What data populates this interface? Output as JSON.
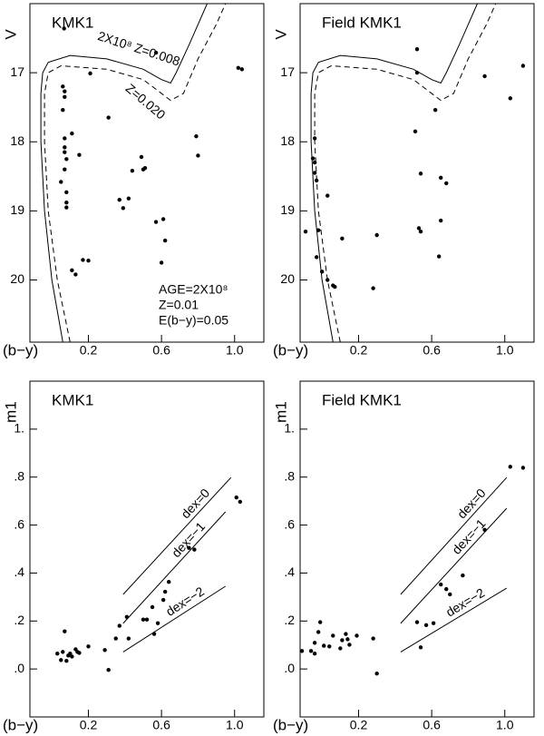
{
  "chart_data": [
    {
      "type": "scatter",
      "title": "KMK1",
      "x_label": "(b−y)",
      "y_label": "V",
      "color": "#000000",
      "xlim": [
        -0.12,
        1.16
      ],
      "ylim": [
        20.9,
        16.0
      ],
      "xticks": [
        0.2,
        0.6,
        {
          "value": 1,
          "label": "1.0"
        }
      ],
      "yticks": [
        17,
        18,
        19,
        20
      ],
      "x": [
        0.067,
        0.57,
        0.21,
        1.02,
        1.04,
        0.06,
        0.07,
        0.07,
        0.06,
        0.31,
        0.11,
        0.07,
        0.07,
        0.07,
        0.08,
        0.07,
        0.15,
        0.79,
        0.8,
        0.44,
        0.49,
        0.5,
        0.51,
        0.05,
        0.08,
        0.08,
        0.08,
        0.37,
        0.39,
        0.42,
        0.57,
        0.61,
        0.62,
        0.6,
        0.17,
        0.2,
        0.11,
        0.13
      ],
      "y": [
        16.36,
        16.71,
        17.01,
        16.93,
        16.95,
        17.2,
        17.27,
        17.35,
        17.54,
        17.65,
        17.88,
        17.95,
        18.08,
        18.15,
        18.25,
        18.4,
        18.19,
        17.92,
        18.2,
        18.42,
        18.22,
        18.4,
        18.38,
        18.58,
        18.73,
        18.88,
        18.95,
        18.84,
        18.96,
        18.82,
        19.16,
        19.12,
        19.43,
        19.75,
        19.71,
        19.72,
        19.86,
        19.92
      ],
      "lines": [
        {
          "dash": false,
          "x": [
            0.06,
            0.0,
            -0.04,
            -0.06,
            -0.06,
            -0.05,
            -0.02,
            0.1,
            0.3,
            0.5,
            0.6,
            0.65,
            0.68,
            0.75,
            0.85
          ],
          "y": [
            20.9,
            20.0,
            19.0,
            18.0,
            17.3,
            17.0,
            16.85,
            16.75,
            16.8,
            16.95,
            17.1,
            17.15,
            17.0,
            16.6,
            16.0
          ]
        },
        {
          "dash": true,
          "x": [
            0.1,
            0.03,
            -0.02,
            -0.04,
            -0.04,
            -0.02,
            0.05,
            0.3,
            0.5,
            0.65,
            0.72,
            0.8,
            0.9,
            0.95
          ],
          "y": [
            20.9,
            20.0,
            19.0,
            18.0,
            17.3,
            17.0,
            16.9,
            16.95,
            17.1,
            17.4,
            17.3,
            16.8,
            16.3,
            16.0
          ]
        }
      ],
      "annotations": [
        "2X10⁸ Z=0.008",
        "Z=0.020",
        "AGE=2X10⁸",
        "Z=0.01",
        "E(b−y)=0.05"
      ]
    },
    {
      "type": "scatter",
      "title": "Field KMK1",
      "x_label": "(b−y)",
      "y_label": "V",
      "color": "#000000",
      "xlim": [
        -0.12,
        1.16
      ],
      "ylim": [
        20.9,
        16.0
      ],
      "xticks": [
        0.2,
        0.6,
        {
          "value": 1,
          "label": "1.0"
        }
      ],
      "yticks": [
        17,
        18,
        19,
        20
      ],
      "x": [
        0.52,
        0.52,
        0.62,
        0.89,
        1.03,
        1.1,
        0.51,
        -0.04,
        -0.05,
        -0.04,
        -0.04,
        -0.03,
        -0.09,
        0.03,
        -0.02,
        0.11,
        0.3,
        0.54,
        0.65,
        0.68,
        0.53,
        0.54,
        0.65,
        0.64,
        -0.03,
        0.0,
        0.03,
        0.06,
        0.07,
        0.28
      ],
      "y": [
        16.66,
        17.0,
        17.54,
        17.05,
        17.37,
        16.9,
        17.85,
        17.95,
        18.24,
        18.3,
        18.45,
        18.56,
        19.3,
        18.78,
        19.28,
        19.4,
        19.35,
        18.46,
        18.52,
        18.6,
        19.25,
        19.3,
        19.14,
        19.66,
        19.67,
        19.88,
        20.0,
        20.08,
        20.1,
        20.12
      ],
      "lines": [
        {
          "dash": false,
          "x": [
            0.06,
            0.0,
            -0.04,
            -0.06,
            -0.06,
            -0.05,
            -0.02,
            0.1,
            0.3,
            0.5,
            0.6,
            0.65,
            0.68,
            0.75,
            0.85
          ],
          "y": [
            20.9,
            20.0,
            19.0,
            18.0,
            17.3,
            17.0,
            16.85,
            16.75,
            16.8,
            16.95,
            17.1,
            17.15,
            17.0,
            16.6,
            16.0
          ]
        },
        {
          "dash": true,
          "x": [
            0.1,
            0.03,
            -0.02,
            -0.04,
            -0.04,
            -0.02,
            0.05,
            0.3,
            0.5,
            0.65,
            0.72,
            0.8,
            0.9,
            0.95
          ],
          "y": [
            20.9,
            20.0,
            19.0,
            18.0,
            17.3,
            17.0,
            16.9,
            16.95,
            17.1,
            17.4,
            17.3,
            16.8,
            16.3,
            16.0
          ]
        }
      ]
    },
    {
      "type": "scatter",
      "title": "KMK1",
      "x_label": "(b−y)",
      "y_label": "m1",
      "color": "#000000",
      "xlim": [
        -0.12,
        1.16
      ],
      "ylim": [
        -0.2,
        1.2
      ],
      "xticks": [
        0.2,
        0.6,
        {
          "value": 1,
          "label": "1.0"
        }
      ],
      "yticks": [
        {
          "value": 0,
          "label": ".0"
        },
        {
          "value": 0.2,
          "label": ".2"
        },
        {
          "value": 0.4,
          "label": ".4"
        },
        {
          "value": 0.6,
          "label": ".6"
        },
        {
          "value": 0.8,
          "label": ".8"
        },
        {
          "value": 1,
          "label": "1."
        }
      ],
      "x": [
        0.03,
        0.05,
        0.06,
        0.08,
        0.09,
        0.13,
        0.14,
        0.11,
        0.07,
        0.1,
        0.15,
        0.2,
        0.31,
        0.29,
        0.35,
        0.42,
        0.37,
        0.5,
        0.52,
        0.55,
        0.58,
        0.61,
        0.62,
        0.64,
        0.56,
        0.75,
        0.78,
        1.01,
        1.03,
        0.41
      ],
      "y": [
        0.064,
        0.037,
        0.071,
        0.034,
        0.056,
        0.082,
        0.071,
        0.052,
        0.157,
        0.064,
        0.067,
        0.094,
        -0.004,
        0.079,
        0.127,
        0.127,
        0.18,
        0.206,
        0.206,
        0.258,
        0.191,
        0.288,
        0.322,
        0.363,
        0.146,
        0.505,
        0.498,
        0.715,
        0.697,
        0.217
      ],
      "lines": [
        {
          "dash": false,
          "label": "dex=0",
          "x": [
            0.39,
            0.98
          ],
          "y": [
            0.311,
            0.798
          ]
        },
        {
          "dash": false,
          "label": "dex=−1",
          "x": [
            0.39,
            0.95
          ],
          "y": [
            0.19,
            0.655
          ]
        },
        {
          "dash": false,
          "label": "dex=−2",
          "x": [
            0.39,
            0.95
          ],
          "y": [
            0.071,
            0.345
          ]
        }
      ]
    },
    {
      "type": "scatter",
      "title": "Field KMK1",
      "x_label": "(b−y)",
      "y_label": "m1",
      "color": "#000000",
      "xlim": [
        -0.12,
        1.16
      ],
      "ylim": [
        -0.2,
        1.2
      ],
      "xticks": [
        0.2,
        0.6,
        {
          "value": 1,
          "label": "1.0"
        }
      ],
      "yticks": [
        {
          "value": 0,
          "label": ".0"
        },
        {
          "value": 0.2,
          "label": ".2"
        },
        {
          "value": 0.4,
          "label": ".4"
        },
        {
          "value": 0.6,
          "label": ".6"
        },
        {
          "value": 0.8,
          "label": ".8"
        },
        {
          "value": 1,
          "label": "1."
        }
      ],
      "x": [
        -0.11,
        -0.06,
        -0.04,
        -0.04,
        -0.02,
        -0.01,
        0.01,
        0.04,
        0.06,
        0.1,
        0.11,
        0.13,
        0.14,
        0.15,
        0.19,
        0.3,
        0.28,
        0.52,
        0.54,
        0.57,
        0.61,
        0.65,
        0.68,
        0.7,
        0.77,
        0.89,
        1.03,
        1.1
      ],
      "y": [
        0.075,
        0.075,
        0.064,
        0.109,
        0.154,
        0.195,
        0.097,
        0.094,
        0.139,
        0.086,
        0.12,
        0.146,
        0.124,
        0.101,
        0.139,
        -0.019,
        0.127,
        0.195,
        0.09,
        0.183,
        0.191,
        0.352,
        0.333,
        0.311,
        0.39,
        0.58,
        0.843,
        0.839
      ],
      "lines": [
        {
          "dash": false,
          "label": "dex=0",
          "x": [
            0.43,
            1.01
          ],
          "y": [
            0.311,
            0.798
          ]
        },
        {
          "dash": false,
          "label": "dex=−1",
          "x": [
            0.43,
            1.01
          ],
          "y": [
            0.19,
            0.67
          ]
        },
        {
          "dash": false,
          "label": "dex=−2",
          "x": [
            0.43,
            1.01
          ],
          "y": [
            0.071,
            0.337
          ]
        }
      ]
    }
  ]
}
